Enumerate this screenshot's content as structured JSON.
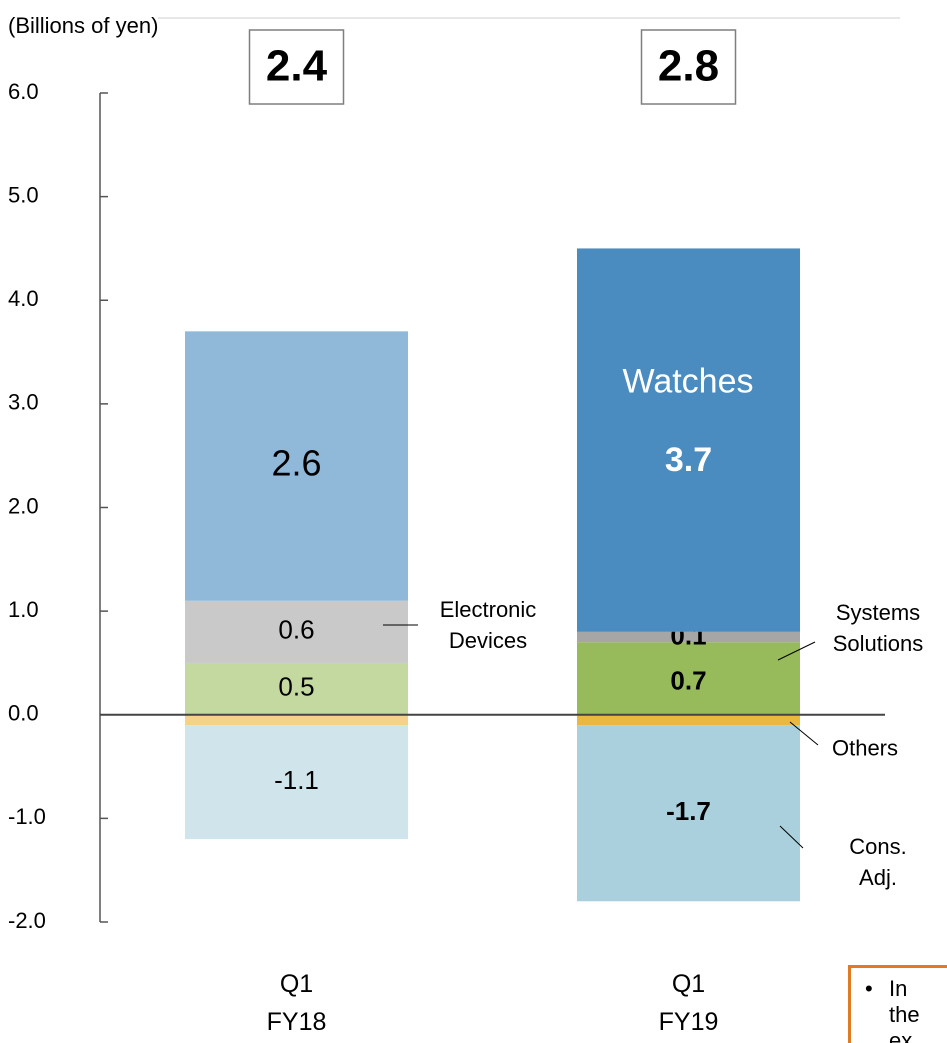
{
  "chart_data": {
    "type": "stacked_bar",
    "y_label": "(Billions of yen)",
    "categories": [
      "Q1\nFY18",
      "Q1\nFY19"
    ],
    "totals": [
      2.4,
      2.8
    ],
    "series": [
      {
        "name": "Systems\nSolutions",
        "colors": [
          "#c4d9a0",
          "#97bb5a"
        ],
        "values": [
          0.5,
          0.7
        ]
      },
      {
        "name": "Electronic\nDevices",
        "colors": [
          "#c9c9c9",
          "#a6a6a6"
        ],
        "values": [
          0.6,
          0.1
        ]
      },
      {
        "name": "Watches",
        "colors": [
          "#8fb8d9",
          "#4a8cc0"
        ],
        "values": [
          2.6,
          3.7
        ]
      },
      {
        "name": "Others",
        "colors": [
          "#f5d28a",
          "#e8b840"
        ],
        "values": [
          -0.1,
          -0.1
        ]
      },
      {
        "name": "Cons. Adj.",
        "colors": [
          "#d0e4ec",
          "#a9d0dc"
        ],
        "values": [
          -1.1,
          -1.7
        ]
      }
    ],
    "ylim": [
      -2.0,
      6.0
    ],
    "yticks": [
      {
        "value": -2,
        "label": "-2.0"
      },
      {
        "value": -1,
        "label": "-1.0"
      },
      {
        "value": 0,
        "label": "0.0"
      },
      {
        "value": 1,
        "label": "1.0"
      },
      {
        "value": 2,
        "label": "2.0"
      },
      {
        "value": 3,
        "label": "3.0"
      },
      {
        "value": 4,
        "label": "4.0"
      },
      {
        "value": 5,
        "label": "5.0"
      },
      {
        "value": 6,
        "label": "6.0"
      }
    ],
    "note_lines": [
      "In",
      "the",
      "ex"
    ]
  }
}
